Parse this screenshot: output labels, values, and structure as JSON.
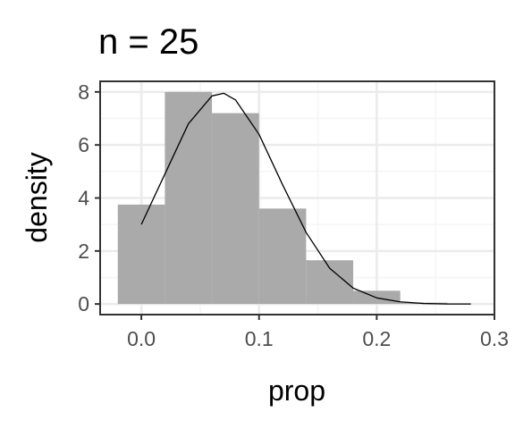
{
  "chart_data": {
    "type": "histogram",
    "title": "n =  25",
    "xlabel": "prop",
    "ylabel": "density",
    "xlim": [
      -0.035,
      0.3
    ],
    "ylim": [
      -0.4,
      8.4
    ],
    "x_ticks": [
      0.0,
      0.1,
      0.2,
      0.3
    ],
    "x_tick_labels": [
      "0.0",
      "0.1",
      "0.2",
      "0.3"
    ],
    "y_ticks": [
      0,
      2,
      4,
      6,
      8
    ],
    "y_tick_labels": [
      "0",
      "2",
      "4",
      "6",
      "8"
    ],
    "grid": true,
    "bins": [
      {
        "x0": -0.02,
        "x1": 0.02,
        "density": 3.75
      },
      {
        "x0": 0.02,
        "x1": 0.06,
        "density": 8.0
      },
      {
        "x0": 0.06,
        "x1": 0.1,
        "density": 7.2
      },
      {
        "x0": 0.1,
        "x1": 0.14,
        "density": 3.6
      },
      {
        "x0": 0.14,
        "x1": 0.18,
        "density": 1.65
      },
      {
        "x0": 0.18,
        "x1": 0.22,
        "density": 0.5
      },
      {
        "x0": 0.22,
        "x1": 0.26,
        "density": 0.05
      }
    ],
    "curve": {
      "type": "density",
      "x": [
        0.0,
        0.02,
        0.04,
        0.06,
        0.07,
        0.08,
        0.1,
        0.12,
        0.14,
        0.16,
        0.18,
        0.2,
        0.22,
        0.24,
        0.26,
        0.28
      ],
      "y": [
        3.0,
        4.9,
        6.8,
        7.85,
        7.95,
        7.7,
        6.4,
        4.5,
        2.7,
        1.35,
        0.6,
        0.23,
        0.08,
        0.02,
        0.0,
        0.0
      ]
    },
    "colors": {
      "bar": "#aaaaaa",
      "curve": "#000000",
      "grid_major": "#ebebeb",
      "grid_minor": "#f5f5f5",
      "panel_border": "#333333"
    }
  }
}
